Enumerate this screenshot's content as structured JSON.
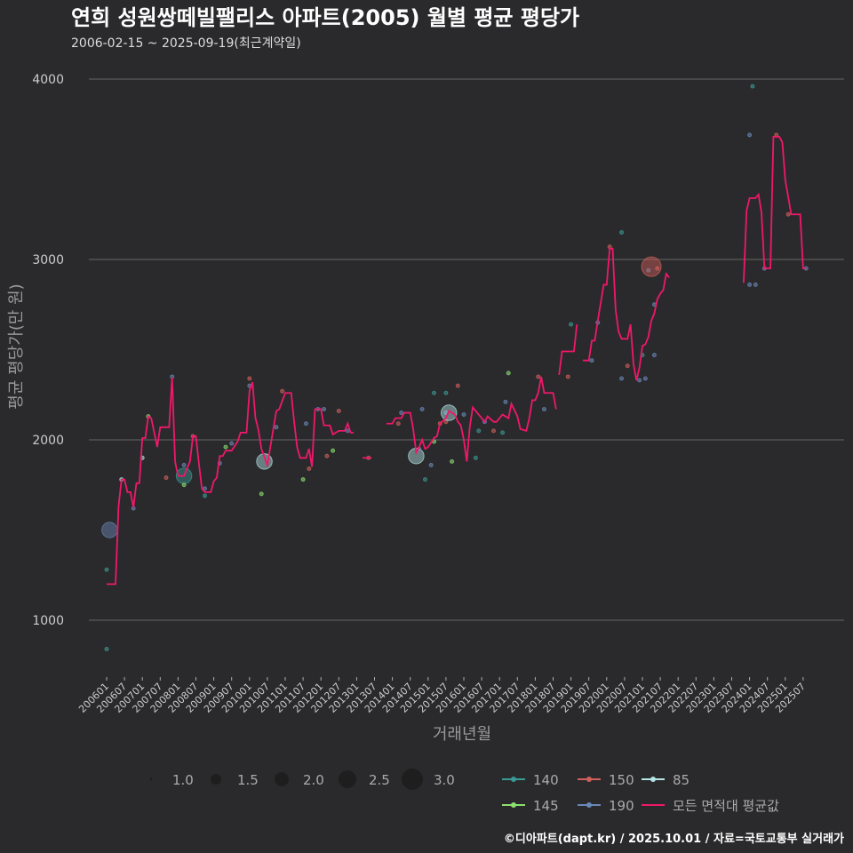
{
  "chart_data": {
    "type": "line",
    "title": "연희 성원쌍떼빌팰리스 아파트(2005) 월별 평균 평당가",
    "subtitle": "2006-02-15 ~ 2025-09-19(최근계약일)",
    "xlabel": "거래년월",
    "ylabel": "평균 평당가(만 원)",
    "ylim": [
      700,
      4200
    ],
    "yticks": [
      1000,
      2000,
      3000,
      4000
    ],
    "x_start": "2006-01",
    "xticks": [
      "200601",
      "200607",
      "200701",
      "200707",
      "200801",
      "200807",
      "200901",
      "200907",
      "201001",
      "201007",
      "201101",
      "201107",
      "201201",
      "201207",
      "201301",
      "201307",
      "201401",
      "201407",
      "201501",
      "201507",
      "201601",
      "201607",
      "201701",
      "201707",
      "201801",
      "201807",
      "201901",
      "201907",
      "202001",
      "202007",
      "202101",
      "202107",
      "202201",
      "202207",
      "202301",
      "202307",
      "202401",
      "202407",
      "202501",
      "202507"
    ],
    "grid": true,
    "size_legend": {
      "values": [
        1.0,
        1.5,
        2.0,
        2.5,
        3.0
      ]
    },
    "series_legend": [
      {
        "name": "140",
        "color": "#3a9a94"
      },
      {
        "name": "150",
        "color": "#d0605c"
      },
      {
        "name": "85",
        "color": "#b4e4e4"
      },
      {
        "name": "145",
        "color": "#8ce070"
      },
      {
        "name": "190",
        "color": "#6a88b8"
      },
      {
        "name": "모든 면적대 평균값",
        "color": "#f0186a"
      }
    ],
    "average_line_note": "x = months since 2006-01",
    "average_line": [
      [
        [
          0,
          1200
        ],
        [
          3,
          1200
        ],
        [
          4,
          1630
        ],
        [
          5,
          1780
        ],
        [
          6,
          1780
        ],
        [
          7,
          1710
        ],
        [
          8,
          1710
        ],
        [
          9,
          1625
        ],
        [
          10,
          1760
        ],
        [
          11,
          1760
        ],
        [
          12,
          2010
        ],
        [
          13,
          2010
        ],
        [
          14,
          2130
        ],
        [
          15,
          2120
        ],
        [
          17,
          1960
        ],
        [
          18,
          2070
        ],
        [
          21,
          2070
        ],
        [
          22,
          2345
        ],
        [
          23,
          1880
        ],
        [
          24,
          1800
        ],
        [
          26,
          1800
        ],
        [
          28,
          1880
        ],
        [
          29,
          2020
        ],
        [
          30,
          2020
        ],
        [
          31,
          1870
        ],
        [
          32,
          1730
        ],
        [
          33,
          1710
        ],
        [
          35,
          1710
        ],
        [
          36,
          1770
        ],
        [
          37,
          1790
        ],
        [
          38,
          1910
        ],
        [
          39,
          1910
        ],
        [
          40,
          1940
        ],
        [
          42,
          1940
        ],
        [
          44,
          1990
        ],
        [
          45,
          2040
        ],
        [
          47,
          2040
        ],
        [
          48,
          2270
        ],
        [
          49,
          2320
        ],
        [
          50,
          2120
        ],
        [
          51,
          2055
        ],
        [
          52,
          1950
        ],
        [
          54,
          1860
        ],
        [
          55,
          1960
        ],
        [
          57,
          2160
        ],
        [
          58,
          2170
        ],
        [
          60,
          2260
        ],
        [
          62,
          2260
        ],
        [
          63,
          2100
        ],
        [
          64,
          1960
        ],
        [
          65,
          1900
        ],
        [
          67,
          1900
        ],
        [
          68,
          1950
        ],
        [
          69,
          1850
        ],
        [
          70,
          2170
        ],
        [
          72,
          2170
        ],
        [
          73,
          2080
        ],
        [
          75,
          2080
        ],
        [
          76,
          2030
        ],
        [
          78,
          2050
        ],
        [
          80,
          2050
        ],
        [
          81,
          2090
        ],
        [
          82,
          2040
        ],
        [
          83,
          2040
        ]
      ],
      [
        [
          86,
          1900
        ],
        [
          89,
          1900
        ]
      ],
      [
        [
          94,
          2090
        ],
        [
          96,
          2090
        ],
        [
          97,
          2120
        ],
        [
          99,
          2120
        ],
        [
          100,
          2150
        ],
        [
          102,
          2150
        ],
        [
          103,
          2060
        ],
        [
          104,
          1930
        ],
        [
          105,
          1960
        ],
        [
          106,
          2000
        ],
        [
          107,
          1950
        ],
        [
          108,
          1960
        ],
        [
          110,
          2010
        ],
        [
          111,
          2020
        ],
        [
          112,
          2090
        ],
        [
          114,
          2120
        ],
        [
          115,
          2160
        ],
        [
          117,
          2140
        ],
        [
          118,
          2100
        ],
        [
          119,
          2080
        ],
        [
          120,
          2000
        ],
        [
          121,
          1880
        ],
        [
          122,
          2070
        ],
        [
          123,
          2180
        ],
        [
          125,
          2140
        ],
        [
          127,
          2100
        ],
        [
          128,
          2130
        ],
        [
          130,
          2100
        ],
        [
          131,
          2100
        ],
        [
          133,
          2140
        ],
        [
          135,
          2120
        ],
        [
          136,
          2200
        ],
        [
          138,
          2130
        ],
        [
          139,
          2060
        ],
        [
          141,
          2050
        ],
        [
          142,
          2120
        ],
        [
          143,
          2220
        ],
        [
          144,
          2220
        ],
        [
          145,
          2260
        ],
        [
          146,
          2350
        ],
        [
          147,
          2260
        ],
        [
          150,
          2260
        ],
        [
          151,
          2170
        ]
      ],
      [
        [
          152,
          2360
        ],
        [
          153,
          2490
        ],
        [
          157,
          2490
        ],
        [
          158,
          2640
        ]
      ],
      [
        [
          160,
          2440
        ],
        [
          162,
          2440
        ],
        [
          163,
          2550
        ],
        [
          164,
          2550
        ],
        [
          165,
          2660
        ],
        [
          167,
          2860
        ],
        [
          168,
          2860
        ],
        [
          169,
          3060
        ],
        [
          170,
          3060
        ],
        [
          171,
          2720
        ],
        [
          172,
          2600
        ],
        [
          173,
          2560
        ],
        [
          175,
          2560
        ],
        [
          176,
          2640
        ],
        [
          177,
          2420
        ],
        [
          178,
          2330
        ],
        [
          179,
          2400
        ],
        [
          180,
          2520
        ],
        [
          181,
          2530
        ],
        [
          182,
          2570
        ],
        [
          183,
          2660
        ],
        [
          184,
          2700
        ],
        [
          185,
          2780
        ],
        [
          186,
          2810
        ],
        [
          187,
          2830
        ],
        [
          188,
          2920
        ],
        [
          189,
          2900
        ]
      ],
      [
        [
          214,
          2870
        ],
        [
          215,
          3270
        ],
        [
          216,
          3340
        ],
        [
          218,
          3340
        ],
        [
          219,
          3360
        ],
        [
          220,
          3260
        ],
        [
          221,
          2950
        ],
        [
          223,
          2950
        ],
        [
          224,
          3680
        ],
        [
          226,
          3680
        ],
        [
          227,
          3650
        ],
        [
          228,
          3440
        ],
        [
          230,
          3250
        ],
        [
          233,
          3250
        ],
        [
          234,
          2950
        ],
        [
          235,
          2950
        ]
      ]
    ],
    "points": [
      [
        0,
        1280,
        "140",
        1
      ],
      [
        0,
        840,
        "140",
        1
      ],
      [
        1,
        1500,
        "190",
        2.5
      ],
      [
        5,
        1780,
        "85",
        1
      ],
      [
        9,
        1620,
        "190",
        1
      ],
      [
        12,
        1900,
        "85",
        1
      ],
      [
        14,
        2130,
        "145",
        1
      ],
      [
        20,
        1790,
        "150",
        1
      ],
      [
        22,
        2350,
        "190",
        1
      ],
      [
        26,
        1800,
        "140",
        2.5
      ],
      [
        26,
        1860,
        "190",
        1
      ],
      [
        26,
        1750,
        "145",
        1
      ],
      [
        29,
        2020,
        "150",
        1
      ],
      [
        33,
        1730,
        "190",
        1
      ],
      [
        33,
        1690,
        "140",
        1
      ],
      [
        38,
        1870,
        "190",
        1
      ],
      [
        40,
        1960,
        "145",
        1
      ],
      [
        42,
        1980,
        "190",
        1
      ],
      [
        48,
        2300,
        "190",
        1
      ],
      [
        48,
        2340,
        "150",
        1
      ],
      [
        52,
        1700,
        "145",
        1
      ],
      [
        53,
        1880,
        "85",
        2.5
      ],
      [
        57,
        2070,
        "190",
        1
      ],
      [
        59,
        2270,
        "150",
        1
      ],
      [
        66,
        1780,
        "145",
        1
      ],
      [
        67,
        2090,
        "190",
        1
      ],
      [
        68,
        1840,
        "150",
        1
      ],
      [
        71,
        2170,
        "190",
        1
      ],
      [
        73,
        2170,
        "190",
        1
      ],
      [
        74,
        1910,
        "150",
        1
      ],
      [
        76,
        1940,
        "145",
        1
      ],
      [
        78,
        2160,
        "150",
        1
      ],
      [
        81,
        2050,
        "190",
        1
      ],
      [
        88,
        1900,
        "150",
        1
      ],
      [
        98,
        2090,
        "150",
        1
      ],
      [
        99,
        2150,
        "190",
        1
      ],
      [
        104,
        1910,
        "85",
        2.5
      ],
      [
        105,
        1950,
        "190",
        1
      ],
      [
        106,
        2170,
        "190",
        1
      ],
      [
        107,
        1780,
        "140",
        1
      ],
      [
        109,
        1860,
        "190",
        1
      ],
      [
        110,
        1990,
        "145",
        1
      ],
      [
        110,
        2260,
        "140",
        1
      ],
      [
        112,
        2090,
        "150",
        1
      ],
      [
        114,
        2150,
        "190",
        1
      ],
      [
        114,
        2260,
        "140",
        1
      ],
      [
        114,
        2100,
        "150",
        1
      ],
      [
        115,
        2150,
        "85",
        2.5
      ],
      [
        116,
        1880,
        "145",
        1
      ],
      [
        118,
        2300,
        "150",
        1
      ],
      [
        120,
        2140,
        "190",
        1
      ],
      [
        124,
        1900,
        "140",
        1
      ],
      [
        125,
        2050,
        "140",
        1
      ],
      [
        127,
        2100,
        "190",
        1
      ],
      [
        130,
        2050,
        "150",
        1
      ],
      [
        133,
        2040,
        "140",
        1
      ],
      [
        134,
        2210,
        "190",
        1
      ],
      [
        135,
        2370,
        "145",
        1
      ],
      [
        145,
        2350,
        "150",
        1
      ],
      [
        147,
        2170,
        "190",
        1
      ],
      [
        155,
        2350,
        "150",
        1
      ],
      [
        156,
        2640,
        "140",
        1
      ],
      [
        163,
        2440,
        "190",
        1
      ],
      [
        165,
        2650,
        "190",
        1
      ],
      [
        169,
        3070,
        "150",
        1
      ],
      [
        173,
        2340,
        "190",
        1
      ],
      [
        173,
        3150,
        "140",
        1
      ],
      [
        175,
        2410,
        "150",
        1
      ],
      [
        179,
        2330,
        "190",
        1
      ],
      [
        180,
        2470,
        "140",
        1
      ],
      [
        181,
        2340,
        "190",
        1
      ],
      [
        182,
        2940,
        "190",
        1
      ],
      [
        183,
        2960,
        "150",
        3.0
      ],
      [
        184,
        2750,
        "190",
        1
      ],
      [
        184,
        2470,
        "190",
        1
      ],
      [
        185,
        2950,
        "150",
        1
      ],
      [
        216,
        3690,
        "190",
        1
      ],
      [
        216,
        2860,
        "190",
        1
      ],
      [
        217,
        3960,
        "140",
        1
      ],
      [
        218,
        2860,
        "190",
        1
      ],
      [
        221,
        2950,
        "190",
        1
      ],
      [
        225,
        3690,
        "150",
        1
      ],
      [
        229,
        3250,
        "150",
        1
      ],
      [
        235,
        2950,
        "190",
        1
      ]
    ]
  },
  "caption": "©디아파트(dapt.kr) / 2025.10.01 / 자료=국토교통부 실거래가"
}
